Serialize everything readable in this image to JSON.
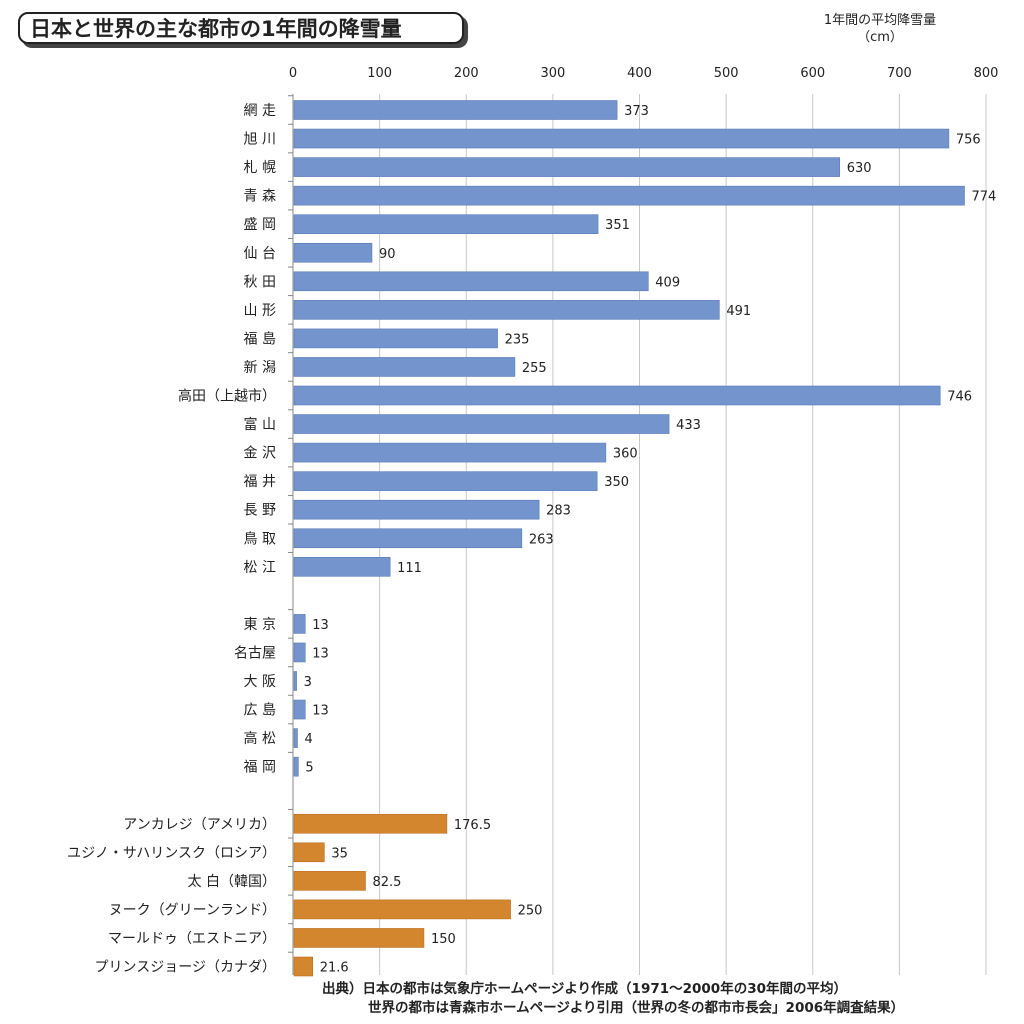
{
  "chart_data": {
    "type": "bar",
    "orientation": "horizontal",
    "title": "日本と世界の主な都市の1年間の降雪量",
    "unit_label": "1年間の平均降雪量",
    "unit": "（cm）",
    "xlim": [
      0,
      800
    ],
    "ticks": [
      0,
      100,
      200,
      300,
      400,
      500,
      600,
      700,
      800
    ],
    "gridlines": true,
    "colors": {
      "japan": "#7394cc",
      "world": "#d4862e"
    },
    "groups": [
      {
        "name": "japan_snowy",
        "color_key": "japan",
        "items": [
          {
            "label": "網 走",
            "value": 373,
            "value_label": "373"
          },
          {
            "label": "旭 川",
            "value": 756,
            "value_label": "756"
          },
          {
            "label": "札 幌",
            "value": 630,
            "value_label": "630"
          },
          {
            "label": "青 森",
            "value": 774,
            "value_label": "774"
          },
          {
            "label": "盛 岡",
            "value": 351,
            "value_label": "351"
          },
          {
            "label": "仙 台",
            "value": 90,
            "value_label": "90"
          },
          {
            "label": "秋 田",
            "value": 409,
            "value_label": "409"
          },
          {
            "label": "山 形",
            "value": 491,
            "value_label": "491"
          },
          {
            "label": "福 島",
            "value": 235,
            "value_label": "235"
          },
          {
            "label": "新 潟",
            "value": 255,
            "value_label": "255"
          },
          {
            "label": "高田（上越市）",
            "value": 746,
            "value_label": "746"
          },
          {
            "label": "富 山",
            "value": 433,
            "value_label": "433"
          },
          {
            "label": "金 沢",
            "value": 360,
            "value_label": "360"
          },
          {
            "label": "福 井",
            "value": 350,
            "value_label": "350"
          },
          {
            "label": "長 野",
            "value": 283,
            "value_label": "283"
          },
          {
            "label": "鳥 取",
            "value": 263,
            "value_label": "263"
          },
          {
            "label": "松 江",
            "value": 111,
            "value_label": "111"
          }
        ]
      },
      {
        "name": "japan_other",
        "color_key": "japan",
        "items": [
          {
            "label": "東 京",
            "value": 13,
            "value_label": "13"
          },
          {
            "label": "名古屋",
            "value": 13,
            "value_label": "13"
          },
          {
            "label": "大 阪",
            "value": 3,
            "value_label": "3"
          },
          {
            "label": "広 島",
            "value": 13,
            "value_label": "13"
          },
          {
            "label": "高 松",
            "value": 4,
            "value_label": "4"
          },
          {
            "label": "福 岡",
            "value": 5,
            "value_label": "5"
          }
        ]
      },
      {
        "name": "world",
        "color_key": "world",
        "items": [
          {
            "label": "アンカレジ（アメリカ）",
            "value": 176.5,
            "value_label": "176.5"
          },
          {
            "label": "ユジノ・サハリンスク（ロシア）",
            "value": 35,
            "value_label": "35"
          },
          {
            "label": "太 白（韓国）",
            "value": 82.5,
            "value_label": "82.5"
          },
          {
            "label": "ヌーク（グリーンランド）",
            "value": 250,
            "value_label": "250"
          },
          {
            "label": "マールドゥ（エストニア）",
            "value": 150,
            "value_label": "150"
          },
          {
            "label": "プリンスジョージ（カナダ）",
            "value": 21.6,
            "value_label": "21.6"
          }
        ]
      }
    ],
    "source_lines": [
      "出典）日本の都市は気象庁ホームページより作成（1971～2000年の30年間の平均）",
      "世界の都市は青森市ホームページより引用（世界の冬の都市市長会」2006年調査結果）"
    ]
  }
}
